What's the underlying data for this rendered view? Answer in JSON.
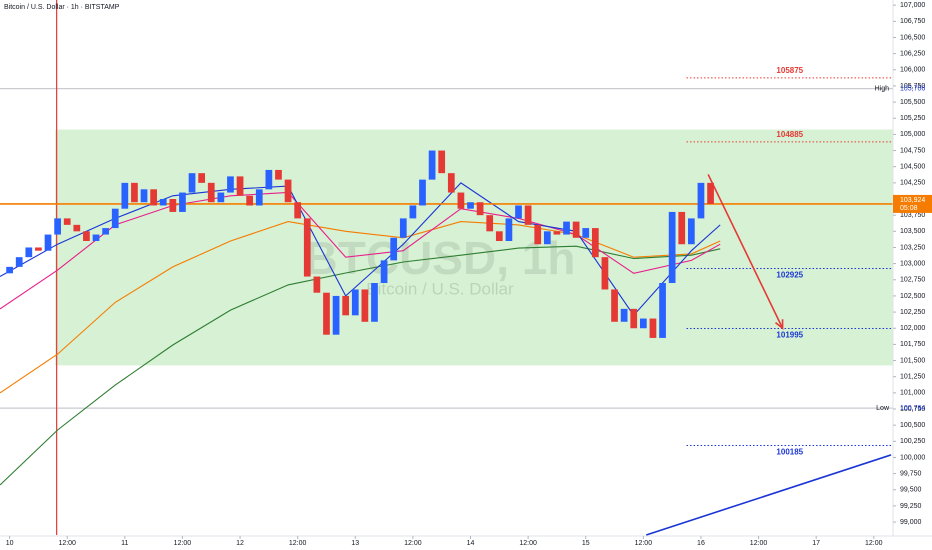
{
  "chart_data": {
    "type": "candlestick",
    "title": "Bitcoin / U.S. Dollar · 1h · BITSTAMP",
    "watermark": "BTCUSD, 1h",
    "watermark_subtitle": "Bitcoin / U.S. Dollar",
    "up_color": "#2962ff",
    "down_color": "#e53935",
    "x": [
      0,
      2,
      4,
      6,
      8,
      10,
      12,
      14,
      16,
      18,
      20,
      22,
      24,
      26,
      28,
      30,
      32,
      34,
      36,
      38,
      40,
      42,
      44,
      46,
      48,
      50,
      52,
      54,
      56,
      58,
      60,
      62,
      64,
      66,
      68,
      70,
      72,
      74,
      76,
      78,
      80,
      82,
      84,
      86,
      88,
      90,
      92,
      94,
      96,
      98,
      100,
      102,
      104,
      106,
      108,
      110,
      112,
      114,
      116,
      118,
      120,
      122,
      124,
      126,
      128,
      130,
      132,
      134,
      136,
      138,
      140,
      142,
      144,
      146
    ],
    "open": [
      102850,
      102950,
      103100,
      103250,
      103200,
      103450,
      103700,
      103600,
      103500,
      103350,
      103450,
      103550,
      103850,
      104250,
      103950,
      104150,
      103900,
      104000,
      103800,
      104100,
      104400,
      104250,
      103950,
      104100,
      104350,
      104050,
      103900,
      104150,
      104450,
      104300,
      103950,
      103700,
      102800,
      102550,
      101900,
      102500,
      102200,
      102600,
      102100,
      102700,
      103050,
      103400,
      103700,
      103900,
      104300,
      104750,
      104400,
      104100,
      103850,
      103950,
      103750,
      103500,
      103350,
      103700,
      103900,
      103600,
      103300,
      103500,
      103450,
      103650,
      103400,
      103550,
      103100,
      102600,
      102100,
      102300,
      102000,
      102150,
      101850,
      102700,
      103800,
      103300,
      103700,
      104250
    ],
    "high": {
      "text": "High",
      "value": 105706,
      "label": "105,706"
    },
    "low": {
      "text": "Low",
      "value": 100764,
      "label": "100,764"
    },
    "close": [
      102950,
      103100,
      103250,
      103200,
      103450,
      103700,
      103600,
      103500,
      103350,
      103450,
      103550,
      103850,
      104250,
      103950,
      104150,
      103900,
      104000,
      103800,
      104100,
      104400,
      104250,
      103950,
      104100,
      104350,
      104050,
      103900,
      104150,
      104450,
      104300,
      103950,
      103700,
      102800,
      102550,
      101900,
      102500,
      102200,
      102600,
      102100,
      102700,
      103050,
      103400,
      103700,
      103900,
      104300,
      104750,
      104400,
      104100,
      103850,
      103950,
      103750,
      103500,
      103350,
      103700,
      103900,
      103600,
      103300,
      103500,
      103450,
      103650,
      103400,
      103550,
      103100,
      102600,
      102100,
      102300,
      102000,
      102150,
      101850,
      102700,
      103800,
      103300,
      103700,
      104250,
      103924
    ],
    "moving_averages": [
      {
        "color": "#2e7d32",
        "x": [
          -2,
          10,
          22,
          34,
          46,
          58,
          70,
          82,
          94,
          106,
          118,
          130,
          142,
          148
        ],
        "values": [
          99574,
          100425,
          101120,
          101740,
          102280,
          102670,
          102855,
          103025,
          103130,
          103240,
          103270,
          103080,
          103130,
          103230
        ]
      },
      {
        "color": "#f57c00",
        "x": [
          -2,
          10,
          22,
          34,
          46,
          58,
          70,
          82,
          94,
          106,
          118,
          130,
          142,
          148
        ],
        "values": [
          101000,
          101600,
          102400,
          102950,
          103350,
          103650,
          103500,
          103400,
          103650,
          103600,
          103450,
          103100,
          103150,
          103350
        ]
      },
      {
        "color": "#e91e8c",
        "x": [
          -2,
          10,
          22,
          34,
          46,
          58,
          70,
          82,
          94,
          106,
          118,
          130,
          142,
          148
        ],
        "values": [
          102300,
          102900,
          103600,
          103900,
          104050,
          104100,
          103100,
          103200,
          103850,
          103700,
          103450,
          102850,
          103050,
          103300
        ]
      },
      {
        "color": "#1a35d6",
        "x": [
          -2,
          10,
          22,
          34,
          46,
          58,
          70,
          82,
          94,
          106,
          118,
          130,
          142,
          148
        ],
        "values": [
          102800,
          103300,
          103700,
          104050,
          104150,
          104200,
          102500,
          103300,
          104250,
          103650,
          103500,
          102200,
          103200,
          103600
        ]
      }
    ],
    "zone": {
      "from": 9.5,
      "to": 184,
      "top": 105075,
      "bottom": 101425,
      "color": "#c8ecc4"
    },
    "vertical_line": {
      "x": 9.8,
      "color": "#e53935"
    },
    "levels": [
      {
        "value": 105875,
        "from": 141,
        "color": "#e53935"
      },
      {
        "value": 104885,
        "from": 141,
        "color": "#e53935"
      },
      {
        "value": 102925,
        "from": 141,
        "color": "#1a35d6"
      },
      {
        "value": 101995,
        "from": 141,
        "color": "#1a35d6"
      },
      {
        "value": 100185,
        "from": 141,
        "color": "#1a35d6"
      }
    ],
    "current_price": {
      "value": 103924,
      "label": "103,924",
      "countdown": "05:08",
      "color": "#f57c00"
    },
    "arrow": {
      "color": "#e53935",
      "x": [
        145.5,
        161
      ],
      "values": [
        104380,
        102000
      ]
    },
    "trendline": {
      "color": "#1a35d6",
      "x": [
        132.6,
        183.6
      ],
      "values": [
        98800,
        100040
      ]
    },
    "xlim": [
      -2,
      184
    ],
    "ylim": [
      98800,
      107080
    ],
    "xticks": [
      {
        "value": 0,
        "label": "10"
      },
      {
        "value": 12,
        "label": "12:00"
      },
      {
        "value": 24,
        "label": "11"
      },
      {
        "value": 36,
        "label": "12:00"
      },
      {
        "value": 48,
        "label": "12"
      },
      {
        "value": 60,
        "label": "12:00"
      },
      {
        "value": 72,
        "label": "13"
      },
      {
        "value": 84,
        "label": "12:00"
      },
      {
        "value": 96,
        "label": "14"
      },
      {
        "value": 108,
        "label": "12:00"
      },
      {
        "value": 120,
        "label": "15"
      },
      {
        "value": 132,
        "label": "12:00"
      },
      {
        "value": 144,
        "label": "16"
      },
      {
        "value": 156,
        "label": "12:00"
      },
      {
        "value": 168,
        "label": "17"
      },
      {
        "value": 180,
        "label": "12:00"
      }
    ],
    "yticks": [
      {
        "value": 99000,
        "label": "99,000"
      },
      {
        "value": 99250,
        "label": "99,250"
      },
      {
        "value": 99500,
        "label": "99,500"
      },
      {
        "value": 99750,
        "label": "99,750"
      },
      {
        "value": 100000,
        "label": "100,000"
      },
      {
        "value": 100250,
        "label": "100,250"
      },
      {
        "value": 100500,
        "label": "100,500"
      },
      {
        "value": 100750,
        "label": "100,750"
      },
      {
        "value": 101000,
        "label": "101,000"
      },
      {
        "value": 101250,
        "label": "101,250"
      },
      {
        "value": 101500,
        "label": "101,500"
      },
      {
        "value": 101750,
        "label": "101,750"
      },
      {
        "value": 102000,
        "label": "102,000"
      },
      {
        "value": 102250,
        "label": "102,250"
      },
      {
        "value": 102500,
        "label": "102,500"
      },
      {
        "value": 102750,
        "label": "102,750"
      },
      {
        "value": 103000,
        "label": "103,000"
      },
      {
        "value": 103250,
        "label": "103,250"
      },
      {
        "value": 103500,
        "label": "103,500"
      },
      {
        "value": 103750,
        "label": "103,750"
      },
      {
        "value": 104000,
        "label": "104,000"
      },
      {
        "value": 104250,
        "label": "104,250"
      },
      {
        "value": 104500,
        "label": "104,500"
      },
      {
        "value": 104750,
        "label": "104,750"
      },
      {
        "value": 105000,
        "label": "105,000"
      },
      {
        "value": 105250,
        "label": "105,250"
      },
      {
        "value": 105500,
        "label": "105,500"
      },
      {
        "value": 105750,
        "label": "105,750"
      },
      {
        "value": 106000,
        "label": "106,000"
      },
      {
        "value": 106250,
        "label": "106,250"
      },
      {
        "value": 106500,
        "label": "106,500"
      },
      {
        "value": 106750,
        "label": "106,750"
      },
      {
        "value": 107000,
        "label": "107,000"
      }
    ]
  }
}
